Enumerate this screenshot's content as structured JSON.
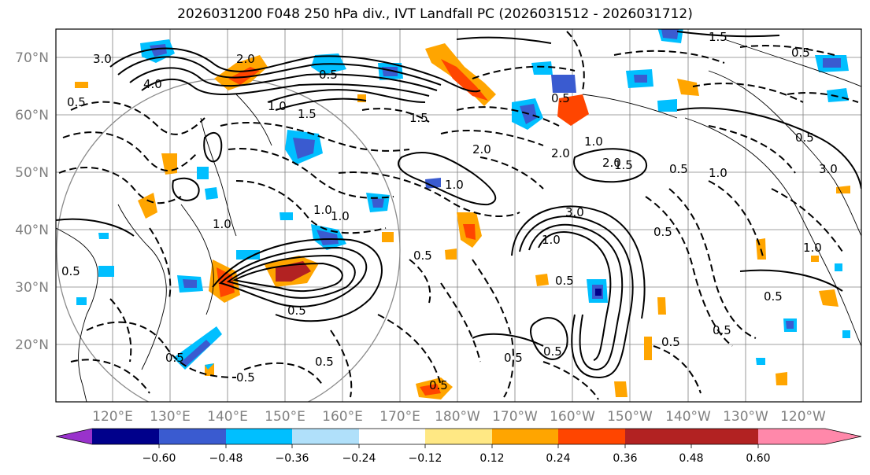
{
  "title": "2026031200 F048 250 hPa div., IVT Landfall PC (2026031512 - 2026031712)",
  "latitude_labels": [
    "70°N",
    "60°N",
    "50°N",
    "40°N",
    "30°N",
    "20°N"
  ],
  "longitude_labels": [
    "120°E",
    "130°E",
    "140°E",
    "150°E",
    "160°E",
    "170°E",
    "180°W",
    "170°W",
    "160°W",
    "150°W",
    "140°W",
    "130°W",
    "120°W"
  ],
  "colorbar": {
    "ticks": [
      "−0.60",
      "−0.48",
      "−0.36",
      "−0.24",
      "−0.12",
      "0.12",
      "0.24",
      "0.36",
      "0.48",
      "0.60"
    ],
    "colors": [
      "#9932cc",
      "#00008b",
      "#3a5bd0",
      "#00bfff",
      "#b0e0fa",
      "#ffffff",
      "#ffe884",
      "#ffa500",
      "#ff4500",
      "#b22222",
      "#ff88aa"
    ]
  },
  "contour_labels": [
    "3.0",
    "4.0",
    "0.5",
    "1.5",
    "2.0",
    "1.0",
    "0.5",
    "2.0",
    "1.0",
    "3.0",
    "1.0",
    "0.5",
    "1.5",
    "0.5",
    "0.5",
    "0.5",
    "0.5",
    "1.0",
    "2.0",
    "1.5",
    "0.5",
    "1.0",
    "3.0",
    "1.0",
    "0.5",
    "0.5",
    "0.5",
    "2.0",
    "0.5",
    "0.5",
    "1.0",
    "1.5",
    "0.5",
    "0.5",
    "0.5",
    "0.5",
    "0.5",
    "0.5",
    "0.5",
    "1.0",
    "1.0"
  ]
}
